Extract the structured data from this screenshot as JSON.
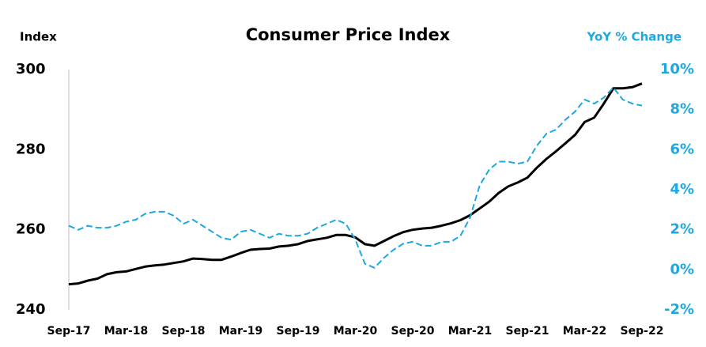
{
  "chart_data": {
    "type": "line",
    "title": "Consumer Price Index",
    "y_label": "Index",
    "y2_label": "YoY % Change",
    "categories": [
      "Sep-17",
      null,
      null,
      null,
      null,
      null,
      "Mar-18",
      null,
      null,
      null,
      null,
      null,
      "Sep-18",
      null,
      null,
      null,
      null,
      null,
      "Mar-19",
      null,
      null,
      null,
      null,
      null,
      "Sep-19",
      null,
      null,
      null,
      null,
      null,
      "Mar-20",
      null,
      null,
      null,
      null,
      null,
      "Sep-20",
      null,
      null,
      null,
      null,
      null,
      "Mar-21",
      null,
      null,
      null,
      null,
      null,
      "Sep-21",
      null,
      null,
      null,
      null,
      null,
      "Mar-22",
      null,
      null,
      null,
      null,
      null,
      "Sep-22"
    ],
    "series": [
      {
        "name": "Index",
        "color": "#000000",
        "line_style": "solid",
        "axis": "y",
        "values": [
          246.4,
          246.6,
          247.3,
          247.8,
          248.9,
          249.4,
          249.6,
          250.2,
          250.8,
          251.1,
          251.3,
          251.7,
          252.1,
          252.8,
          252.7,
          252.5,
          252.5,
          253.3,
          254.2,
          255.0,
          255.2,
          255.3,
          255.8,
          256.0,
          256.4,
          257.2,
          257.6,
          258.0,
          258.7,
          258.7,
          258.1,
          256.4,
          256.0,
          257.2,
          258.4,
          259.4,
          260.0,
          260.3,
          260.5,
          261.0,
          261.6,
          262.4,
          263.6,
          265.3,
          267.0,
          269.2,
          270.8,
          271.8,
          273.0,
          275.5,
          277.7,
          279.6,
          281.6,
          283.7,
          286.9,
          288.0,
          291.5,
          295.3,
          295.3,
          295.6,
          296.5
        ]
      },
      {
        "name": "YoY % Change",
        "color": "#1ea8e0",
        "line_style": "dashed",
        "axis": "y2",
        "values": [
          2.2,
          2.0,
          2.2,
          2.1,
          2.1,
          2.2,
          2.4,
          2.5,
          2.8,
          2.9,
          2.9,
          2.7,
          2.3,
          2.5,
          2.2,
          1.9,
          1.6,
          1.5,
          1.9,
          2.0,
          1.8,
          1.6,
          1.8,
          1.7,
          1.7,
          1.8,
          2.1,
          2.3,
          2.5,
          2.3,
          1.5,
          0.3,
          0.1,
          0.6,
          1.0,
          1.3,
          1.4,
          1.2,
          1.2,
          1.4,
          1.4,
          1.7,
          2.6,
          4.2,
          5.0,
          5.4,
          5.4,
          5.3,
          5.4,
          6.2,
          6.8,
          7.0,
          7.5,
          7.9,
          8.5,
          8.3,
          8.6,
          9.1,
          8.5,
          8.3,
          8.2
        ]
      }
    ],
    "ylim": [
      240,
      300
    ],
    "yticks": [
      240,
      260,
      280,
      300
    ],
    "y2lim": [
      -2,
      10
    ],
    "y2ticks": [
      {
        "value": -2,
        "label": "-2%"
      },
      {
        "value": 0,
        "label": "0%"
      },
      {
        "value": 2,
        "label": "2%"
      },
      {
        "value": 4,
        "label": "4%"
      },
      {
        "value": 6,
        "label": "6%"
      },
      {
        "value": 8,
        "label": "8%"
      },
      {
        "value": 10,
        "label": "10%"
      }
    ],
    "y2_color": "#1ea8e0",
    "grid": false
  }
}
